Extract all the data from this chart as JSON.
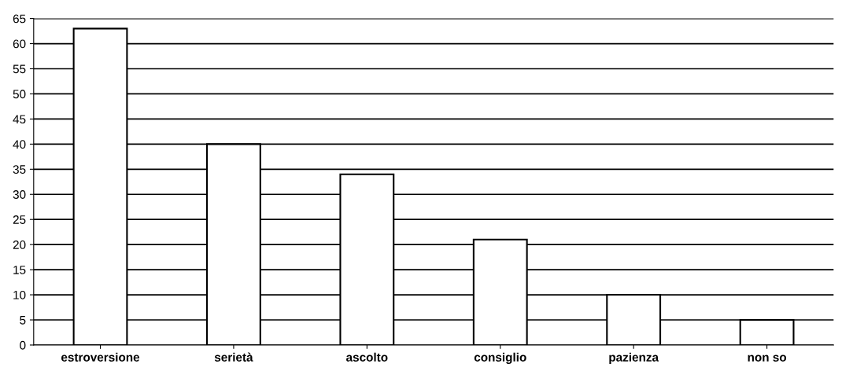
{
  "chart_data": {
    "type": "bar",
    "categories": [
      "estroversione",
      "serietà",
      "ascolto",
      "consiglio",
      "pazienza",
      "non so"
    ],
    "values": [
      63,
      40,
      34,
      21,
      10,
      5
    ],
    "color": "#ffffff",
    "ylim": [
      0,
      65
    ],
    "yticks": [
      0,
      5,
      10,
      15,
      20,
      25,
      30,
      35,
      40,
      45,
      50,
      55,
      60,
      65
    ],
    "grid": "y"
  }
}
